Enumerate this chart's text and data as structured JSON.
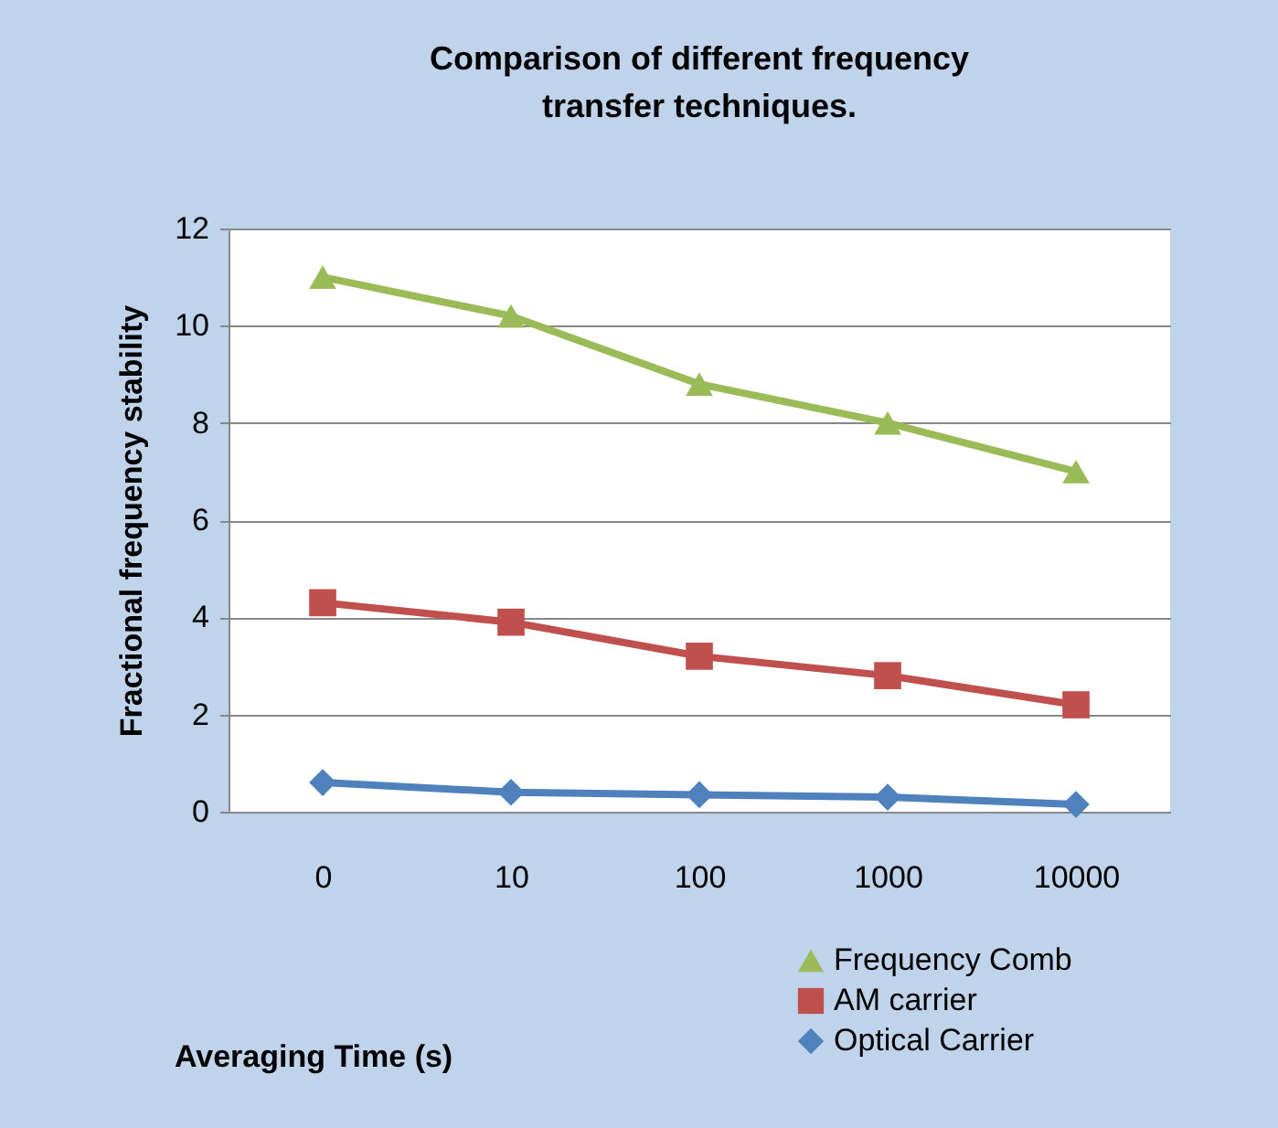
{
  "chart_data": {
    "type": "line",
    "title": "Comparison of different frequency transfer techniques.",
    "xlabel": "Averaging Time (s)",
    "ylabel": "Fractional frequency stability",
    "categories": [
      "0",
      "10",
      "100",
      "1000",
      "10000"
    ],
    "series": [
      {
        "name": "Frequency Comb",
        "color": "#9bbb59",
        "marker": "triangle",
        "values": [
          11,
          10.2,
          8.8,
          8.0,
          7.0
        ]
      },
      {
        "name": "AM carrier",
        "color": "#c0504d",
        "marker": "square",
        "values": [
          4.3,
          3.9,
          3.2,
          2.8,
          2.2
        ]
      },
      {
        "name": "Optical Carrier",
        "color": "#4f81bd",
        "marker": "diamond",
        "values": [
          0.6,
          0.4,
          0.35,
          0.3,
          0.15
        ]
      }
    ],
    "ylim": [
      0,
      12
    ],
    "yticks": [
      0,
      2,
      4,
      6,
      8,
      10,
      12
    ],
    "grid": "y",
    "legend": "bottom right",
    "line_style": "solid"
  }
}
